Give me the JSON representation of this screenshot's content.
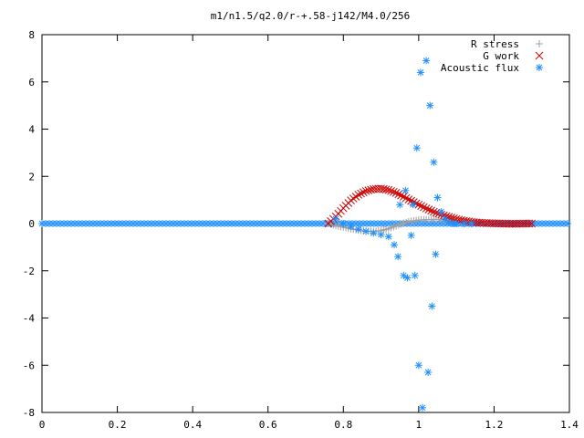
{
  "chart_data": {
    "type": "scatter",
    "title": "m1/n1.5/q2.0/r-+.58-j142/M4.0/256",
    "xlabel": "",
    "ylabel": "",
    "xlim": [
      0,
      1.4
    ],
    "ylim": [
      -8,
      8
    ],
    "xticks": [
      "0",
      "0.2",
      "0.4",
      "0.6",
      "0.8",
      "1",
      "1.2",
      "1.4"
    ],
    "yticks": [
      "8",
      "6",
      "4",
      "2",
      "0",
      "-2",
      "-4",
      "-6",
      "-8"
    ],
    "grid": false,
    "legend_position": "top-right",
    "series": [
      {
        "name": "R stress",
        "marker": "plus",
        "color": "#a0a0a0",
        "x": [
          0.76,
          0.78,
          0.8,
          0.82,
          0.84,
          0.86,
          0.88,
          0.9,
          0.92,
          0.94,
          0.96,
          0.98,
          1.0,
          1.02,
          1.04,
          1.06,
          1.08,
          1.1,
          1.12,
          1.14
        ],
        "y": [
          0,
          -0.08,
          -0.15,
          -0.22,
          -0.28,
          -0.32,
          -0.33,
          -0.3,
          -0.22,
          -0.1,
          0.02,
          0.1,
          0.15,
          0.17,
          0.18,
          0.17,
          0.15,
          0.12,
          0.09,
          0.06
        ]
      },
      {
        "name": "G work",
        "marker": "cross",
        "color": "#cc0000",
        "x": [
          0.76,
          0.78,
          0.8,
          0.82,
          0.84,
          0.86,
          0.88,
          0.9,
          0.92,
          0.94,
          0.96,
          0.98,
          1.0,
          1.02,
          1.04,
          1.06,
          1.08,
          1.1,
          1.12,
          1.14,
          1.16,
          1.18,
          1.2,
          1.22,
          1.24,
          1.26,
          1.28,
          1.3
        ],
        "y": [
          0,
          0.3,
          0.65,
          0.98,
          1.22,
          1.38,
          1.46,
          1.48,
          1.42,
          1.3,
          1.14,
          0.96,
          0.8,
          0.64,
          0.5,
          0.38,
          0.28,
          0.19,
          0.12,
          0.07,
          0.04,
          0.02,
          0.01,
          0,
          -0.01,
          -0.01,
          0,
          0
        ]
      },
      {
        "name": "Acoustic flux",
        "marker": "star",
        "color": "#1e90ff",
        "x": [
          0.78,
          0.8,
          0.82,
          0.84,
          0.86,
          0.88,
          0.9,
          0.92,
          0.935,
          0.945,
          0.95,
          0.96,
          0.965,
          0.97,
          0.98,
          0.985,
          0.99,
          0.995,
          1.0,
          1.005,
          1.01,
          1.02,
          1.025,
          1.03,
          1.035,
          1.04,
          1.045,
          1.05,
          1.06,
          1.07,
          1.08,
          1.09,
          1.1,
          1.12,
          1.14
        ],
        "y": [
          0.2,
          0.0,
          -0.12,
          -0.24,
          -0.33,
          -0.4,
          -0.47,
          -0.55,
          -0.9,
          -1.4,
          0.8,
          -2.2,
          1.4,
          -2.3,
          -0.5,
          0.8,
          -2.2,
          3.2,
          -6.0,
          6.4,
          -7.8,
          6.9,
          -6.3,
          5.0,
          -3.5,
          2.6,
          -1.3,
          1.1,
          0.5,
          0.2,
          0.05,
          0.0,
          0.0,
          0.0,
          0.0
        ]
      }
    ],
    "baseline_series": "Acoustic flux",
    "baseline_value": 0
  }
}
